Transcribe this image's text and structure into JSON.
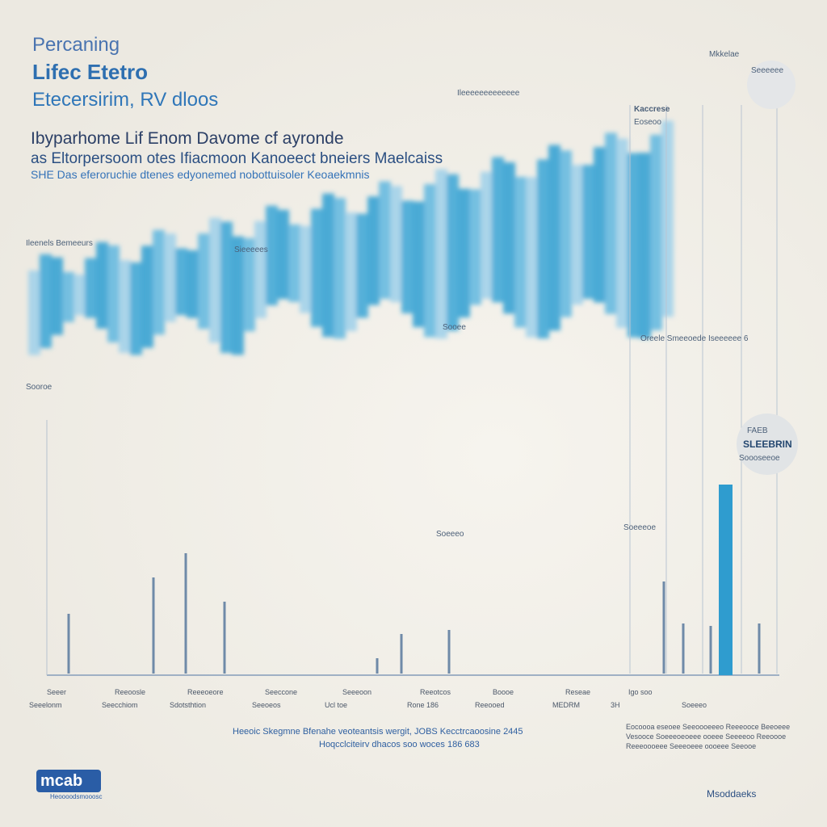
{
  "header": {
    "kicker": "Percaning",
    "title": "Lifec Etetro",
    "subtitle": "Etecersirim, RV dloos"
  },
  "intro": [
    "Ibyparhome Lif Enom Davome cf ayronde",
    "as Eltorpersoom otes Ifiacmoon Kanoeect bneiers Maelcaiss",
    "SHE Das eferoruchie dtenes edyonemed nobottuisoler Keoaekmnis"
  ],
  "annotations": [
    "Ileenels Bemeeurs",
    "Ileeeeeeeeeeeee",
    "Sieeeees",
    "Mkkelae",
    "Seeeeee",
    "Kaccrese",
    "Eoseoo",
    "Sooroe",
    "Sooee",
    "Oreele Smeeoede Iseeeeee 6",
    "FAEB",
    "SLEEBRIN",
    "Soooseeoe",
    "Soeeeo",
    "Soeeeoe"
  ],
  "x_labels": [
    "Seeer",
    "Reeoosle",
    "Reeeoeore",
    "Seeccone",
    "Seeeoon",
    "Reeotcos",
    "Boooe",
    "Reseae",
    "Igo soo"
  ],
  "x_sublabels": [
    "Seeelonm",
    "Seecchiom",
    "Sdotsthtion",
    "Seeoeos",
    "Ucl toe",
    "Rone 186",
    "Reeooed",
    "MEDRM",
    "3H",
    "Soeeeo"
  ],
  "footer": {
    "center": [
      "Heeoic Skegmne Bfenahe veoteantsis wergit, JOBS Kecctrcaoosine 2445",
      "Hoqcclciteirv dhacos soo woces 186 683"
    ],
    "right": [
      "Eocoooa eseoee Seeoooeeeo Reeeooce Beeoeee",
      "Vesooce Soeeeoeoeee ooeee Seeeeoo Reeoooe",
      "Reeeoooeee Seeeoeee oooeee Seeooe"
    ],
    "logo": "mcab",
    "logo_sub": "Heoooodsmooosc",
    "brand": "Msoddaeks"
  }
}
